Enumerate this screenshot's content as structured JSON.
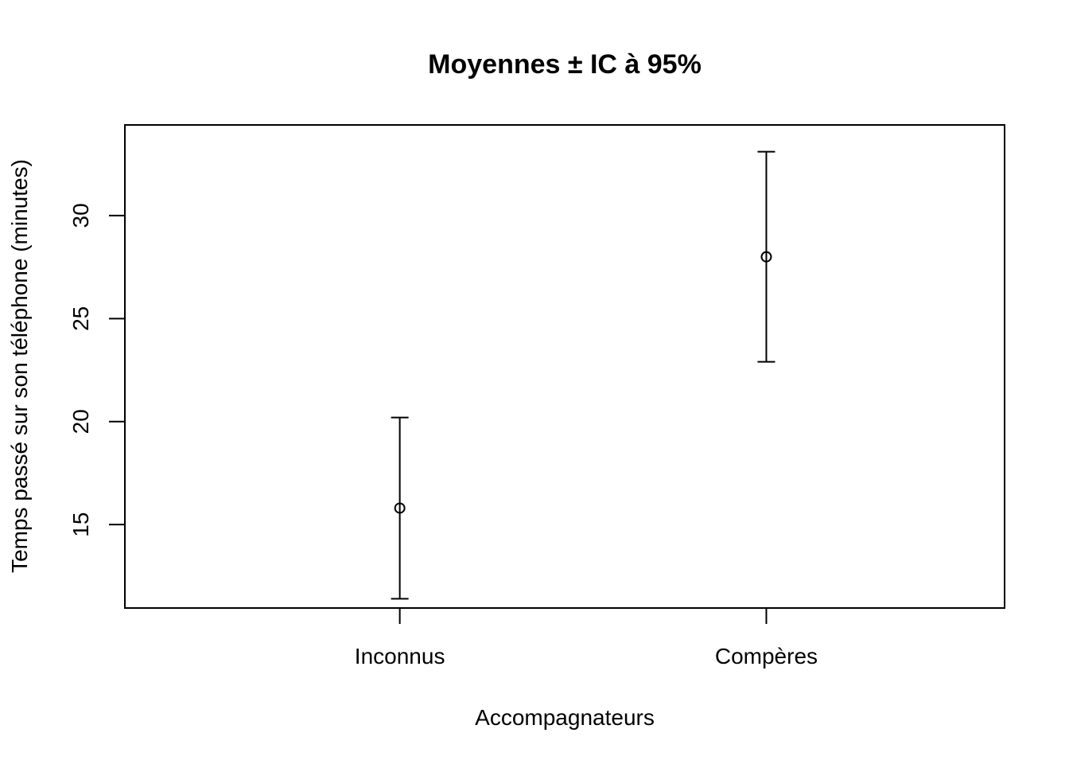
{
  "chart_data": {
    "type": "errorbar",
    "title": "Moyennes ± IC à 95%",
    "xlabel": "Accompagnateurs",
    "ylabel": "Temps passé sur son téléphone (minutes)",
    "categories": [
      "Inconnus",
      "Compères"
    ],
    "mean": [
      15.8,
      28.0
    ],
    "ci_lower": [
      11.4,
      22.9
    ],
    "ci_upper": [
      20.2,
      33.1
    ],
    "y_ticks": [
      15,
      20,
      25,
      30
    ],
    "ylim": [
      10.95,
      34.4
    ],
    "xlim": [
      0.25,
      2.65
    ],
    "grid": false,
    "legend": "none"
  }
}
